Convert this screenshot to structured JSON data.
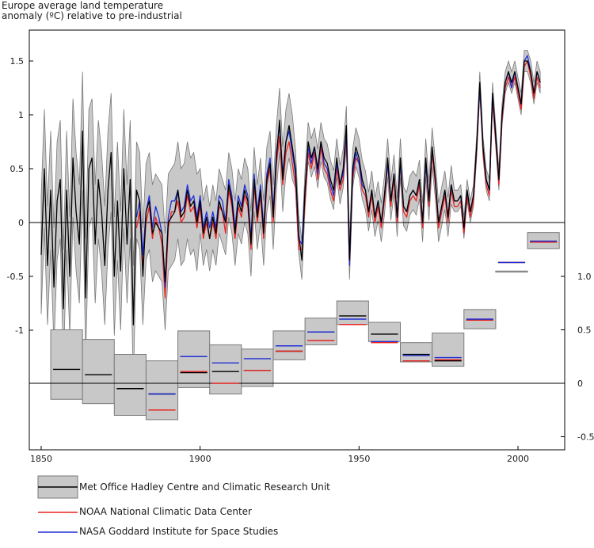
{
  "chart_data": {
    "type": "line",
    "title_line1": "Europe average land temperature",
    "title_line2": "anomaly (ºC) relative to pre-industrial",
    "xlim": [
      1847,
      2016
    ],
    "x_ticks": [
      1850,
      1900,
      1950,
      2000
    ],
    "annual": {
      "ylim": [
        -2.0,
        1.75
      ],
      "y_ticks": [
        1.5,
        1,
        0.5,
        0,
        -0.5,
        -1
      ],
      "y_tick_labels": [
        "1.5",
        "1",
        "0.5",
        "0",
        "-0.5",
        "-1"
      ],
      "zero_line": 0,
      "years_hadcrut": [
        1850,
        2013
      ],
      "hadcrut": [
        -0.3,
        0.5,
        -0.4,
        0.3,
        -0.6,
        0.2,
        0.4,
        -0.8,
        0.3,
        -0.5,
        0.6,
        0.1,
        -0.2,
        0.85,
        -0.7,
        0.5,
        0.6,
        -0.2,
        0.4,
        0.1,
        -0.4,
        0.3,
        0.65,
        -0.5,
        0.2,
        -0.45,
        0.5,
        -0.2,
        0.4,
        -0.95,
        0.3,
        0.2,
        -0.5,
        0.1,
        0.2,
        -0.1,
        0.0,
        -0.05,
        -0.1,
        -0.55,
        0.0,
        0.05,
        0.1,
        0.3,
        0.05,
        0.1,
        0.3,
        0.15,
        0.2,
        0.0,
        0.2,
        -0.1,
        0.05,
        -0.15,
        0.05,
        -0.1,
        0.2,
        0.1,
        0.0,
        0.35,
        0.2,
        -0.1,
        0.2,
        0.1,
        0.3,
        0.2,
        -0.2,
        0.4,
        0.05,
        0.3,
        -0.1,
        0.4,
        0.55,
        0.05,
        0.6,
        0.95,
        0.4,
        0.75,
        0.9,
        0.7,
        0.5,
        -0.1,
        -0.35,
        0.3,
        0.75,
        0.6,
        0.7,
        0.5,
        0.75,
        0.6,
        0.55,
        0.4,
        0.3,
        0.6,
        0.35,
        0.5,
        0.9,
        -0.35,
        0.5,
        0.7,
        0.6,
        0.4,
        0.3,
        0.1,
        0.3,
        0.05,
        0.2,
        0.0,
        0.25,
        0.6,
        0.2,
        0.45,
        0.05,
        0.6,
        0.15,
        0.1,
        0.25,
        0.3,
        0.25,
        0.4,
        0.0,
        0.6,
        0.2,
        0.7,
        0.4,
        0.0,
        0.15,
        0.3,
        0.05,
        0.35,
        0.2,
        0.2,
        0.25,
        -0.05,
        0.3,
        0.1,
        0.25,
        0.7,
        1.3,
        0.7,
        0.4,
        0.3,
        1.2,
        0.8,
        0.4,
        1.0,
        1.3,
        1.4,
        1.3,
        1.4,
        1.25,
        1.1,
        1.5,
        1.5,
        1.4,
        1.2,
        1.4,
        1.3
      ],
      "gistemp_start": 1880,
      "gistemp": [
        0.05,
        0.2,
        -0.3,
        0.1,
        0.25,
        -0.05,
        0.15,
        0.05,
        -0.1,
        -0.6,
        0.05,
        0.2,
        0.2,
        0.3,
        0.1,
        0.15,
        0.35,
        0.2,
        0.25,
        0.05,
        0.25,
        -0.05,
        0.1,
        -0.05,
        0.1,
        -0.05,
        0.25,
        0.2,
        0.0,
        0.4,
        0.25,
        -0.05,
        0.25,
        0.15,
        0.35,
        0.25,
        -0.15,
        0.45,
        0.1,
        0.35,
        -0.05,
        0.45,
        0.6,
        0.1,
        0.65,
        0.9,
        0.45,
        0.75,
        0.85,
        0.65,
        0.45,
        -0.15,
        -0.2,
        0.3,
        0.7,
        0.55,
        0.7,
        0.45,
        0.75,
        0.55,
        0.5,
        0.35,
        0.25,
        0.55,
        0.35,
        0.45,
        0.85,
        -0.4,
        0.45,
        0.65,
        0.55,
        0.35,
        0.3,
        0.1,
        0.3,
        0.05,
        0.2,
        0.0,
        0.25,
        0.55,
        0.2,
        0.45,
        0.05,
        0.55,
        0.15,
        0.1,
        0.25,
        0.3,
        0.25,
        0.4,
        0.0,
        0.55,
        0.2,
        0.7,
        0.4,
        0.0,
        0.15,
        0.3,
        0.05,
        0.35,
        0.2,
        0.2,
        0.25,
        -0.05,
        0.3,
        0.1,
        0.25,
        0.7,
        1.25,
        0.7,
        0.4,
        0.3,
        1.2,
        0.8,
        0.4,
        1.0,
        1.3,
        1.4,
        1.25,
        1.4,
        1.25,
        1.1,
        1.5,
        1.55,
        1.4,
        1.2,
        1.4,
        1.3
      ],
      "ncdc_start": 1880,
      "ncdc": [
        -0.05,
        0.1,
        -0.4,
        0.0,
        0.15,
        -0.15,
        0.05,
        -0.05,
        -0.2,
        -0.7,
        -0.05,
        0.1,
        0.1,
        0.2,
        0.0,
        0.05,
        0.25,
        0.1,
        0.15,
        -0.05,
        0.15,
        -0.15,
        0.0,
        -0.15,
        0.0,
        -0.15,
        0.15,
        0.1,
        -0.1,
        0.3,
        0.15,
        -0.15,
        0.15,
        0.05,
        0.25,
        0.15,
        -0.25,
        0.35,
        0.0,
        0.25,
        -0.15,
        0.35,
        0.5,
        0.0,
        0.55,
        0.8,
        0.35,
        0.65,
        0.75,
        0.55,
        0.35,
        -0.25,
        -0.25,
        0.2,
        0.65,
        0.5,
        0.65,
        0.4,
        0.7,
        0.5,
        0.45,
        0.3,
        0.2,
        0.5,
        0.3,
        0.4,
        0.8,
        -0.4,
        0.4,
        0.6,
        0.55,
        0.3,
        0.25,
        0.05,
        0.25,
        0.0,
        0.15,
        -0.05,
        0.2,
        0.55,
        0.15,
        0.4,
        0.0,
        0.55,
        0.1,
        0.05,
        0.2,
        0.25,
        0.2,
        0.35,
        -0.05,
        0.55,
        0.15,
        0.65,
        0.35,
        -0.05,
        0.1,
        0.25,
        0.0,
        0.3,
        0.15,
        0.15,
        0.2,
        -0.1,
        0.25,
        0.05,
        0.2,
        0.65,
        1.25,
        0.65,
        0.35,
        0.25,
        1.15,
        0.75,
        0.35,
        0.95,
        1.25,
        1.35,
        1.25,
        1.35,
        1.2,
        1.05,
        1.45,
        1.5,
        1.35,
        1.15,
        1.35,
        1.25
      ],
      "band_halfwidth": [
        0.55,
        0.45,
        0.3,
        0.18,
        0.1
      ]
    },
    "decadal": {
      "y_ticks": [
        1.0,
        0.5,
        0,
        -0.5
      ],
      "y_tick_labels": [
        "1.0",
        "0.5",
        "0",
        "-0.5"
      ],
      "zero_line": 0,
      "decade_starts": [
        1853,
        1863,
        1873,
        1883,
        1893,
        1903,
        1913,
        1923,
        1933,
        1943,
        1953,
        1963,
        1973,
        1983,
        1993,
        2003
      ],
      "hadcrut": [
        0.13,
        0.08,
        -0.05,
        -0.1,
        0.1,
        0.11,
        0.12,
        0.3,
        0.48,
        0.63,
        0.46,
        0.27,
        0.21,
        0.59,
        1.13,
        1.32
      ],
      "hadcrut_lower": [
        -0.15,
        -0.19,
        -0.3,
        -0.34,
        -0.04,
        -0.1,
        -0.03,
        0.22,
        0.36,
        0.55,
        0.39,
        0.2,
        0.16,
        0.51,
        1.04,
        1.26
      ],
      "hadcrut_upper": [
        0.5,
        0.41,
        0.27,
        0.21,
        0.49,
        0.36,
        0.32,
        0.49,
        0.61,
        0.77,
        0.57,
        0.38,
        0.47,
        0.69,
        1.05,
        1.41
      ],
      "ncdc": [
        null,
        null,
        null,
        -0.25,
        0.11,
        0.0,
        0.12,
        0.3,
        0.4,
        0.55,
        0.38,
        0.21,
        0.22,
        0.59,
        1.13,
        1.32
      ],
      "gistemp": [
        null,
        null,
        null,
        -0.1,
        0.25,
        0.19,
        0.23,
        0.35,
        0.48,
        0.6,
        0.39,
        0.26,
        0.24,
        0.6,
        1.13,
        1.33
      ]
    },
    "legend": [
      {
        "label": "Met Office Hadley Centre and Climatic Research Unit",
        "color": "#000000",
        "band": "#c8c8c8"
      },
      {
        "label": "NOAA National Climatic Data Center",
        "color": "#e8231f"
      },
      {
        "label": "NASA Goddard Institute for Space Studies",
        "color": "#1f2fd6"
      }
    ],
    "colors": {
      "band": "#c8c8c8",
      "band_edge": "#7a7a7a",
      "hadcrut": "#000000",
      "ncdc": "#e8231f",
      "gistemp": "#1f2fd6"
    }
  }
}
